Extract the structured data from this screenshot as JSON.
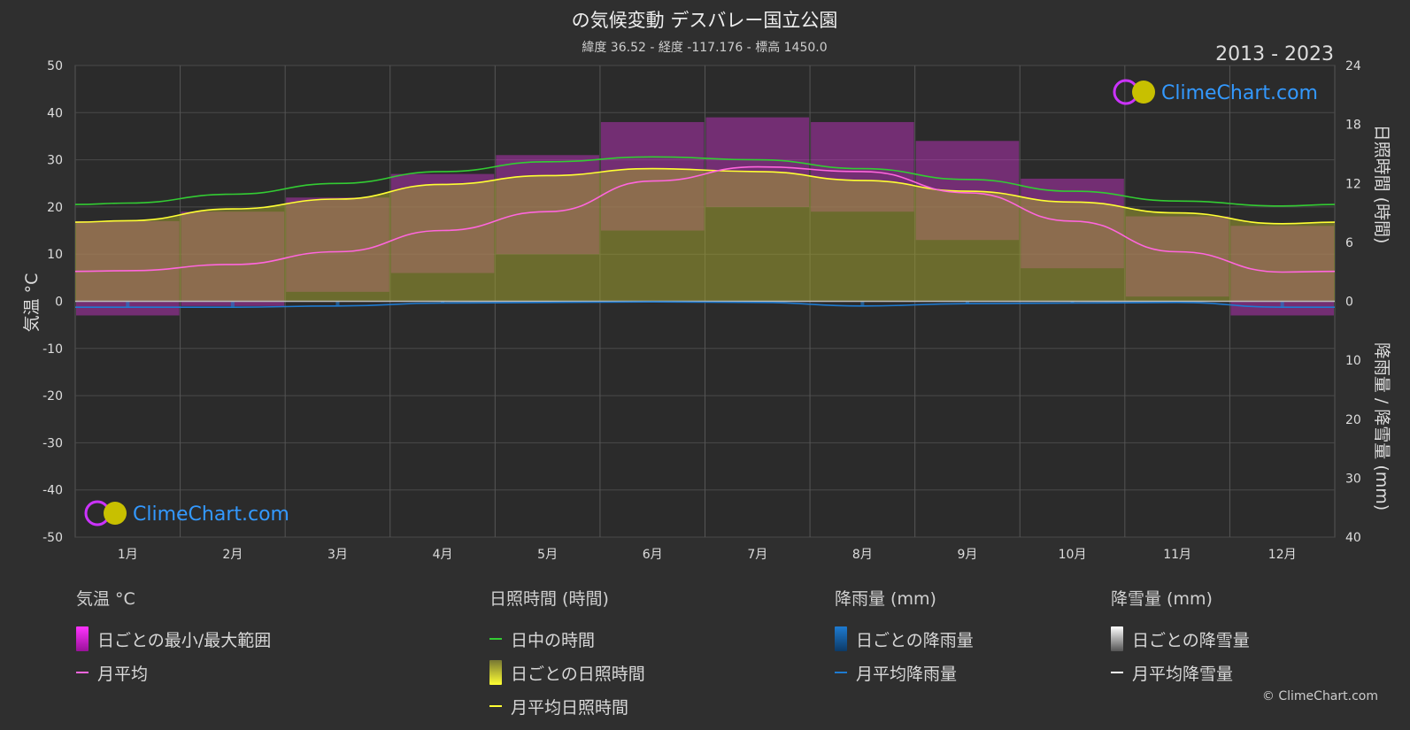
{
  "title": "の気候変動 デスバレー国立公園",
  "subtitle": "緯度 36.52 - 経度 -117.176 - 標高 1450.0",
  "year_range": "2013 - 2023",
  "watermark": "ClimeChart.com",
  "copyright": "© ClimeChart.com",
  "colors": {
    "background": "#2f2f2f",
    "plot_bg": "#2b2b2b",
    "daylight": "#33cc33",
    "sunshine_line": "#ffff33",
    "sunshine_fill": "#a0a030",
    "temp_line": "#ff66dd",
    "temp_range": "#cc33cc",
    "rain": "#1e7bd1",
    "snow": "#bbbbbb",
    "watermark": "#3399ff"
  },
  "chart_data": {
    "type": "area",
    "months": [
      "1月",
      "2月",
      "3月",
      "4月",
      "5月",
      "6月",
      "7月",
      "8月",
      "9月",
      "10月",
      "11月",
      "12月"
    ],
    "axes": {
      "left": {
        "label": "気温 °C",
        "min": -50,
        "max": 50,
        "ticks": [
          50,
          40,
          30,
          20,
          10,
          0,
          -10,
          -20,
          -30,
          -40,
          -50
        ]
      },
      "right_top": {
        "label": "日照時間 (時間)",
        "min": 0,
        "max": 24,
        "ticks": [
          24,
          18,
          12,
          6,
          0
        ]
      },
      "right_bottom": {
        "label": "降雨量 / 降雪量 (mm)",
        "min": 0,
        "max": 40,
        "ticks": [
          10,
          20,
          30,
          40
        ]
      }
    },
    "series": [
      {
        "name": "日中の時間",
        "unit": "hours",
        "values": [
          10.0,
          10.9,
          12.0,
          13.2,
          14.2,
          14.7,
          14.4,
          13.5,
          12.4,
          11.2,
          10.2,
          9.7
        ]
      },
      {
        "name": "月平均日照時間",
        "unit": "hours",
        "values": [
          8.2,
          9.4,
          10.4,
          11.9,
          12.8,
          13.5,
          13.2,
          12.3,
          11.2,
          10.1,
          9.0,
          7.9
        ]
      },
      {
        "name": "月平均",
        "unit": "°C",
        "values": [
          6.5,
          7.8,
          10.5,
          15.0,
          19.0,
          25.5,
          28.5,
          27.5,
          23.0,
          17.0,
          10.5,
          6.2
        ]
      },
      {
        "name": "日ごとの最小/最大範囲",
        "unit": "°C",
        "min": [
          -3,
          -1,
          2,
          6,
          10,
          15,
          20,
          19,
          13,
          7,
          1,
          -3
        ],
        "max": [
          17,
          19,
          22,
          27,
          31,
          38,
          39,
          38,
          34,
          26,
          18,
          16
        ]
      },
      {
        "name": "月平均降雨量",
        "unit": "mm",
        "values": [
          1.0,
          1.0,
          0.8,
          0.3,
          0.2,
          0.1,
          0.2,
          0.8,
          0.4,
          0.3,
          0.2,
          1.0
        ]
      },
      {
        "name": "月平均降雪量",
        "unit": "mm",
        "values": [
          0,
          0,
          0,
          0,
          0,
          0,
          0,
          0,
          0,
          0,
          0,
          0
        ]
      }
    ]
  },
  "legend": {
    "temp": {
      "title": "気温 °C",
      "items": [
        "日ごとの最小/最大範囲",
        "月平均"
      ]
    },
    "sun": {
      "title": "日照時間 (時間)",
      "items": [
        "日中の時間",
        "日ごとの日照時間",
        "月平均日照時間"
      ]
    },
    "rain": {
      "title": "降雨量 (mm)",
      "items": [
        "日ごとの降雨量",
        "月平均降雨量"
      ]
    },
    "snow": {
      "title": "降雪量 (mm)",
      "items": [
        "日ごとの降雪量",
        "月平均降雪量"
      ]
    }
  }
}
